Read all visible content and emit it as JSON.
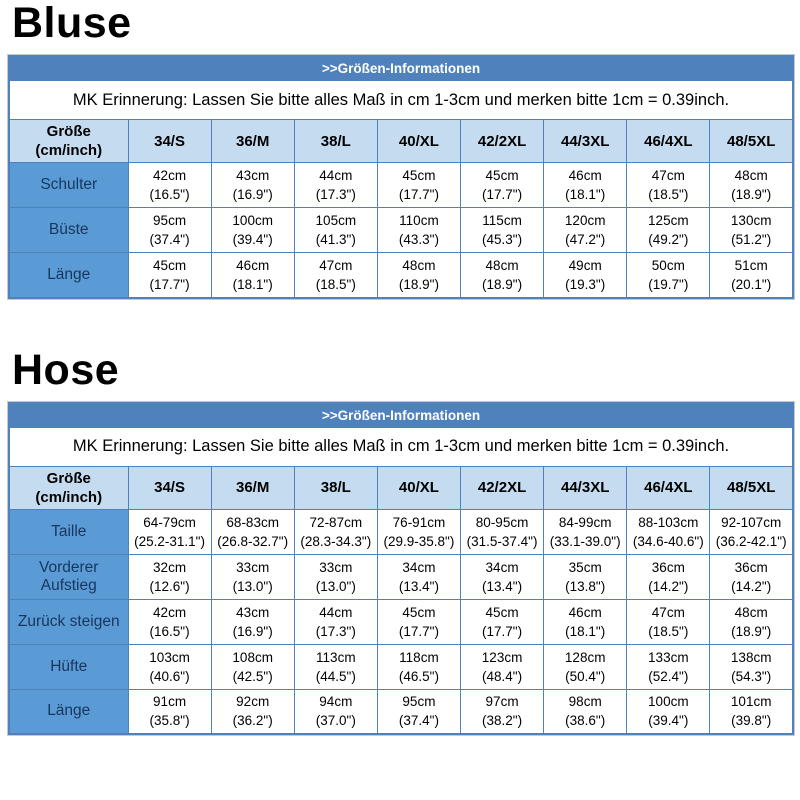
{
  "colors": {
    "header_band": "#4f81bd",
    "header_cell": "#c5dcf0",
    "label_cell": "#5b9bd5",
    "label_text": "#17365d",
    "border": "#4f81bd"
  },
  "sections": [
    {
      "title": "Bluse",
      "table": {
        "banner": ">>Größen-Informationen",
        "note": "MK Erinnerung: Lassen Sie bitte alles Maß in cm 1-3cm und merken bitte 1cm = 0.39inch.",
        "corner_header_line1": "Größe",
        "corner_header_line2": "(cm/inch)",
        "size_headers": [
          "34/S",
          "36/M",
          "38/L",
          "40/XL",
          "42/2XL",
          "44/3XL",
          "46/4XL",
          "48/5XL"
        ],
        "rows": [
          {
            "label": "Schulter",
            "cells": [
              [
                "42cm",
                "(16.5\")"
              ],
              [
                "43cm",
                "(16.9\")"
              ],
              [
                "44cm",
                "(17.3\")"
              ],
              [
                "45cm",
                "(17.7\")"
              ],
              [
                "45cm",
                "(17.7\")"
              ],
              [
                "46cm",
                "(18.1\")"
              ],
              [
                "47cm",
                "(18.5\")"
              ],
              [
                "48cm",
                "(18.9\")"
              ]
            ]
          },
          {
            "label": "Büste",
            "cells": [
              [
                "95cm",
                "(37.4\")"
              ],
              [
                "100cm",
                "(39.4\")"
              ],
              [
                "105cm",
                "(41.3\")"
              ],
              [
                "110cm",
                "(43.3\")"
              ],
              [
                "115cm",
                "(45.3\")"
              ],
              [
                "120cm",
                "(47.2\")"
              ],
              [
                "125cm",
                "(49.2\")"
              ],
              [
                "130cm",
                "(51.2\")"
              ]
            ]
          },
          {
            "label": "Länge",
            "cells": [
              [
                "45cm",
                "(17.7\")"
              ],
              [
                "46cm",
                "(18.1\")"
              ],
              [
                "47cm",
                "(18.5\")"
              ],
              [
                "48cm",
                "(18.9\")"
              ],
              [
                "48cm",
                "(18.9\")"
              ],
              [
                "49cm",
                "(19.3\")"
              ],
              [
                "50cm",
                "(19.7\")"
              ],
              [
                "51cm",
                "(20.1\")"
              ]
            ]
          }
        ]
      }
    },
    {
      "title": "Hose",
      "table": {
        "banner": ">>Größen-Informationen",
        "note": "MK Erinnerung: Lassen Sie bitte alles Maß in cm 1-3cm und merken bitte 1cm = 0.39inch.",
        "corner_header_line1": "Größe",
        "corner_header_line2": "(cm/inch)",
        "size_headers": [
          "34/S",
          "36/M",
          "38/L",
          "40/XL",
          "42/2XL",
          "44/3XL",
          "46/4XL",
          "48/5XL"
        ],
        "rows": [
          {
            "label": "Taille",
            "cells": [
              [
                "64-79cm",
                "(25.2-31.1\")"
              ],
              [
                "68-83cm",
                "(26.8-32.7\")"
              ],
              [
                "72-87cm",
                "(28.3-34.3\")"
              ],
              [
                "76-91cm",
                "(29.9-35.8\")"
              ],
              [
                "80-95cm",
                "(31.5-37.4\")"
              ],
              [
                "84-99cm",
                "(33.1-39.0\")"
              ],
              [
                "88-103cm",
                "(34.6-40.6\")"
              ],
              [
                "92-107cm",
                "(36.2-42.1\")"
              ]
            ]
          },
          {
            "label": "Vorderer Aufstieg",
            "cells": [
              [
                "32cm",
                "(12.6\")"
              ],
              [
                "33cm",
                "(13.0\")"
              ],
              [
                "33cm",
                "(13.0\")"
              ],
              [
                "34cm",
                "(13.4\")"
              ],
              [
                "34cm",
                "(13.4\")"
              ],
              [
                "35cm",
                "(13.8\")"
              ],
              [
                "36cm",
                "(14.2\")"
              ],
              [
                "36cm",
                "(14.2\")"
              ]
            ]
          },
          {
            "label": "Zurück steigen",
            "cells": [
              [
                "42cm",
                "(16.5\")"
              ],
              [
                "43cm",
                "(16.9\")"
              ],
              [
                "44cm",
                "(17.3\")"
              ],
              [
                "45cm",
                "(17.7\")"
              ],
              [
                "45cm",
                "(17.7\")"
              ],
              [
                "46cm",
                "(18.1\")"
              ],
              [
                "47cm",
                "(18.5\")"
              ],
              [
                "48cm",
                "(18.9\")"
              ]
            ]
          },
          {
            "label": "Hüfte",
            "cells": [
              [
                "103cm",
                "(40.6\")"
              ],
              [
                "108cm",
                "(42.5\")"
              ],
              [
                "113cm",
                "(44.5\")"
              ],
              [
                "118cm",
                "(46.5\")"
              ],
              [
                "123cm",
                "(48.4\")"
              ],
              [
                "128cm",
                "(50.4\")"
              ],
              [
                "133cm",
                "(52.4\")"
              ],
              [
                "138cm",
                "(54.3\")"
              ]
            ]
          },
          {
            "label": "Länge",
            "cells": [
              [
                "91cm",
                "(35.8\")"
              ],
              [
                "92cm",
                "(36.2\")"
              ],
              [
                "94cm",
                "(37.0\")"
              ],
              [
                "95cm",
                "(37.4\")"
              ],
              [
                "97cm",
                "(38.2\")"
              ],
              [
                "98cm",
                "(38.6\")"
              ],
              [
                "100cm",
                "(39.4\")"
              ],
              [
                "101cm",
                "(39.8\")"
              ]
            ]
          }
        ]
      }
    }
  ]
}
